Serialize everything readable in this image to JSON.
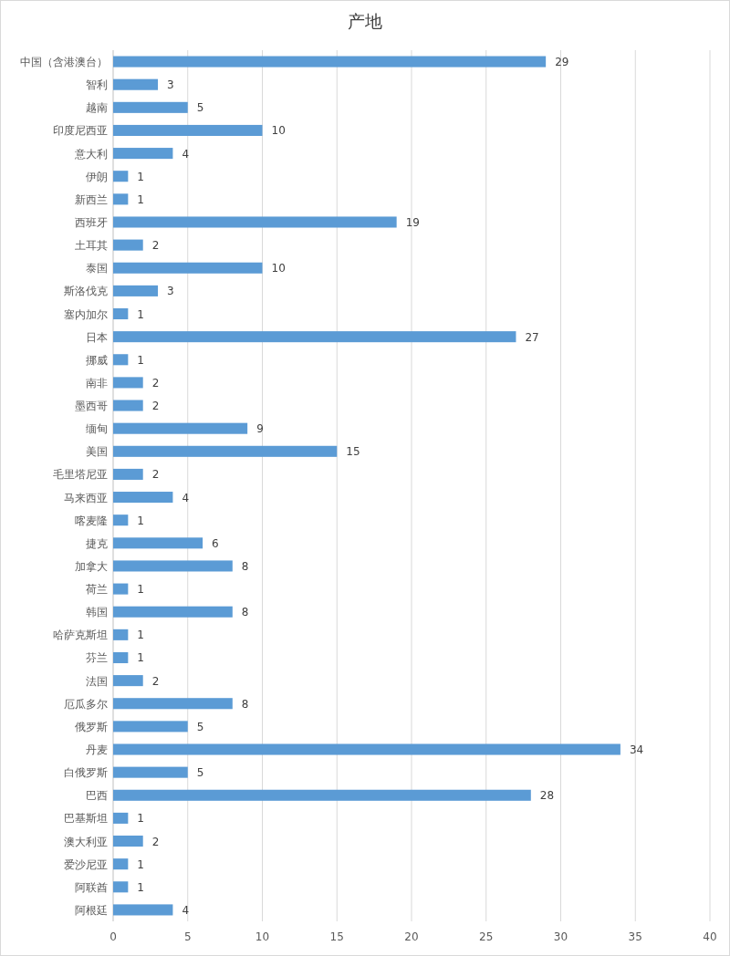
{
  "chart_data": {
    "type": "bar",
    "orientation": "horizontal",
    "title": "产地",
    "categories": [
      "中国（含港澳台）",
      "智利",
      "越南",
      "印度尼西亚",
      "意大利",
      "伊朗",
      "新西兰",
      "西班牙",
      "土耳其",
      "泰国",
      "斯洛伐克",
      "塞内加尔",
      "日本",
      "挪威",
      "南非",
      "墨西哥",
      "缅甸",
      "美国",
      "毛里塔尼亚",
      "马来西亚",
      "喀麦隆",
      "捷克",
      "加拿大",
      "荷兰",
      "韩国",
      "哈萨克斯坦",
      "芬兰",
      "法国",
      "厄瓜多尔",
      "俄罗斯",
      "丹麦",
      "白俄罗斯",
      "巴西",
      "巴基斯坦",
      "澳大利亚",
      "爱沙尼亚",
      "阿联酋",
      "阿根廷"
    ],
    "values": [
      29,
      3,
      5,
      10,
      4,
      1,
      1,
      19,
      2,
      10,
      3,
      1,
      27,
      1,
      2,
      2,
      9,
      15,
      2,
      4,
      1,
      6,
      8,
      1,
      8,
      1,
      1,
      2,
      8,
      5,
      34,
      5,
      28,
      1,
      2,
      1,
      1,
      4
    ],
    "color": "#5b9bd5",
    "xlim": [
      0,
      40
    ],
    "xticks": [
      0,
      5,
      10,
      15,
      20,
      25,
      30,
      35,
      40
    ],
    "grid": "x",
    "data_labels": true
  }
}
